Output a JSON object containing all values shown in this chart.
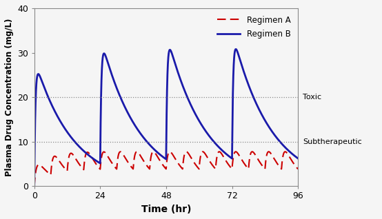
{
  "title": "",
  "xlabel": "Time (hr)",
  "ylabel": "Plasma Drug Concentration (mg/L)",
  "xlim": [
    0,
    96
  ],
  "ylim": [
    0,
    40
  ],
  "xticks": [
    0,
    24,
    48,
    72,
    96
  ],
  "yticks": [
    0,
    10,
    20,
    30,
    40
  ],
  "toxic_level": 20,
  "subtherapeutic_level": 10,
  "toxic_label": "Toxic",
  "subtherapeutic_label": "Subtherapeutic",
  "regimen_a_color": "#cc0000",
  "regimen_b_color": "#1a1aaa",
  "background_color": "#f5f5f5",
  "axes_bg_color": "#f5f5f5",
  "legend_a": "Regimen A",
  "legend_b": "Regimen B",
  "figsize": [
    5.54,
    3.18
  ],
  "dpi": 100,
  "regimen_a_dose_interval": 6,
  "regimen_a_ka": 1.4,
  "regimen_a_ke": 0.18,
  "regimen_a_F": 6.5,
  "regimen_b_dose_interval": 24,
  "regimen_b_ka": 2.5,
  "regimen_b_ke": 0.072,
  "regimen_b_F": 28.0
}
